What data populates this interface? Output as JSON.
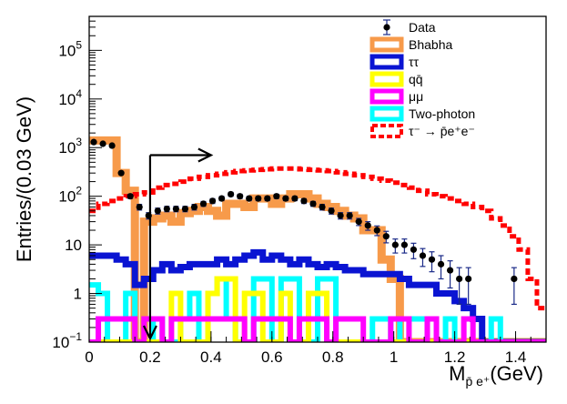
{
  "chart_data": {
    "type": "histogram",
    "title": "",
    "ylabel": "Entries/(0.03 GeV)",
    "xlabel": {
      "main": "M",
      "sub": "p̄ e⁺",
      "unit": "(GeV)"
    },
    "x_range": [
      0,
      1.5
    ],
    "y_scale": "log",
    "y_range": [
      0.1,
      500000
    ],
    "bin_width": 0.03,
    "x_ticks": [
      "0",
      "0.2",
      "0.4",
      "0.6",
      "0.8",
      "1",
      "1.2",
      "1.4"
    ],
    "x_tick_values": [
      0,
      0.2,
      0.4,
      0.6,
      0.8,
      1.0,
      1.2,
      1.4
    ],
    "y_ticks": [
      {
        "value": 0.1,
        "base": "10",
        "exp": "−1"
      },
      {
        "value": 1,
        "label": "1"
      },
      {
        "value": 10,
        "label": "10"
      },
      {
        "value": 100,
        "base": "10",
        "exp": "2"
      },
      {
        "value": 1000,
        "base": "10",
        "exp": "3"
      },
      {
        "value": 10000,
        "base": "10",
        "exp": "4"
      },
      {
        "value": 100000,
        "base": "10",
        "exp": "5"
      }
    ],
    "cut": {
      "x": 0.2,
      "label": "selection cut at 0.2 GeV, keep region to the right"
    },
    "legend": [
      {
        "label": "Data",
        "style": "marker",
        "color": "#000000"
      },
      {
        "label": "Bhabha",
        "style": "line",
        "color": "#f79a4a"
      },
      {
        "label": "ττ",
        "style": "line",
        "color": "#0a14d2"
      },
      {
        "label": "qq̄",
        "style": "line",
        "color": "#ffff00"
      },
      {
        "label": "μμ",
        "style": "line",
        "color": "#ff00ff"
      },
      {
        "label": "Two-photon",
        "style": "line",
        "color": "#00ffff"
      },
      {
        "label": "τ⁻ → p̄e⁺e⁻",
        "style": "dashed",
        "color": "#ff0000"
      }
    ],
    "series": [
      {
        "name": "Bhabha",
        "color": "#f79a4a",
        "width": 9,
        "dash": "",
        "values": [
          1400,
          1400,
          1400,
          300,
          130,
          0.1,
          30,
          35,
          40,
          30,
          45,
          50,
          60,
          50,
          40,
          70,
          70,
          60,
          90,
          90,
          70,
          90,
          110,
          110,
          90,
          70,
          60,
          50,
          40,
          35,
          20,
          20,
          5,
          2,
          0.1,
          0.1,
          0.1,
          0.1,
          0.1,
          0.1,
          0.1,
          0.1,
          0.1,
          0.1,
          0.1,
          0.1,
          0.1,
          0.1,
          0.1,
          0.1
        ]
      },
      {
        "name": "ττ",
        "color": "#0a14d2",
        "width": 7,
        "dash": "",
        "values": [
          6,
          6,
          6,
          5,
          4,
          1.5,
          2,
          3,
          4,
          3,
          3.5,
          4,
          4,
          4,
          5,
          4,
          5,
          6,
          7,
          5,
          6,
          5,
          4,
          5,
          4,
          3.5,
          4,
          3.5,
          3,
          3,
          2.5,
          2.5,
          2.5,
          2.5,
          2,
          1.5,
          1.5,
          1.5,
          1,
          1,
          0.7,
          0.5,
          0.3,
          0.1,
          0.1,
          0.1,
          0.1,
          0.1,
          0.1,
          0.1
        ]
      },
      {
        "name": "Two-photon",
        "color": "#00ffff",
        "width": 6,
        "dash": "",
        "values": [
          1.5,
          1,
          0.1,
          0.1,
          1,
          0.1,
          0.1,
          0.3,
          0.1,
          0.1,
          0.3,
          1,
          0.1,
          1,
          2,
          0.3,
          0.1,
          0.1,
          2,
          2,
          0.1,
          2,
          2,
          0.1,
          0.1,
          2,
          2,
          0.1,
          0.1,
          0.1,
          0.1,
          0.3,
          0.3,
          0.1,
          0.3,
          0.3,
          0.3,
          0.3,
          0.1,
          0.3,
          0.1,
          0.1,
          0.1,
          0.1,
          0.3,
          0.1,
          0.1,
          0.1,
          0.1,
          0.1
        ]
      },
      {
        "name": "qq̄",
        "color": "#ffff00",
        "width": 6,
        "dash": "",
        "values": [
          0.1,
          0.1,
          0.1,
          0.1,
          0.1,
          0.1,
          0.1,
          0.1,
          0.1,
          1,
          0.1,
          0.1,
          0.1,
          1,
          2,
          2,
          0.1,
          1,
          1,
          0.1,
          0.1,
          1,
          0.1,
          0.1,
          1,
          1,
          0.1,
          0.1,
          0.1,
          0.1,
          0.1,
          0.1,
          0.1,
          0.1,
          0.1,
          0.1,
          0.1,
          0.1,
          0.1,
          0.1,
          0.1,
          0.1,
          0.1,
          0.1,
          0.1,
          0.1,
          0.1,
          0.1,
          0.1,
          0.1
        ]
      },
      {
        "name": "μμ",
        "color": "#ff00ff",
        "width": 6,
        "dash": "",
        "values": [
          0.1,
          0.3,
          0.3,
          0.3,
          0.3,
          0.1,
          0.3,
          0.3,
          0.1,
          0.3,
          0.3,
          0.3,
          0.3,
          0.3,
          0.3,
          0.3,
          0.3,
          0.1,
          0.3,
          0.3,
          0.3,
          0.3,
          0.1,
          0.3,
          0.3,
          0.3,
          0.1,
          0.3,
          0.3,
          0.3,
          0.1,
          0.1,
          0.1,
          0.3,
          0.3,
          0.1,
          0.1,
          0.3,
          0.1,
          0.1,
          0.1,
          0.3,
          0.1,
          0.1,
          0.1,
          0.1,
          0.1,
          0.1,
          0.1,
          0.1
        ]
      },
      {
        "name": "τ⁻ → p̄e⁺e⁻",
        "color": "#ff0000",
        "width": 5,
        "dash": "7,4",
        "values": [
          50,
          70,
          80,
          90,
          100,
          110,
          120,
          150,
          170,
          180,
          200,
          230,
          250,
          270,
          290,
          310,
          330,
          340,
          350,
          360,
          370,
          370,
          370,
          360,
          350,
          340,
          330,
          310,
          290,
          270,
          250,
          230,
          210,
          190,
          170,
          150,
          130,
          110,
          100,
          90,
          80,
          70,
          60,
          50,
          35,
          25,
          15,
          8,
          2,
          0.5
        ]
      }
    ],
    "data_points": {
      "name": "Data",
      "color": "#000000",
      "x": [
        0.015,
        0.045,
        0.075,
        0.105,
        0.135,
        0.165,
        0.195,
        0.225,
        0.255,
        0.285,
        0.315,
        0.345,
        0.375,
        0.405,
        0.435,
        0.465,
        0.495,
        0.525,
        0.555,
        0.585,
        0.615,
        0.645,
        0.675,
        0.705,
        0.735,
        0.765,
        0.795,
        0.825,
        0.855,
        0.885,
        0.915,
        0.945,
        0.975,
        1.005,
        1.035,
        1.065,
        1.095,
        1.125,
        1.155,
        1.185,
        1.215,
        1.245,
        1.395
      ],
      "y": [
        1300,
        1200,
        1100,
        300,
        100,
        60,
        40,
        50,
        55,
        55,
        55,
        60,
        70,
        80,
        90,
        110,
        100,
        90,
        90,
        90,
        100,
        90,
        90,
        80,
        70,
        60,
        50,
        40,
        40,
        30,
        25,
        20,
        15,
        10,
        10,
        8,
        6,
        5,
        4,
        3,
        2,
        2,
        2
      ],
      "err": [
        40,
        35,
        35,
        17,
        10,
        8,
        6,
        7,
        7,
        7,
        7,
        8,
        8,
        9,
        9,
        10,
        10,
        9,
        9,
        9,
        10,
        9,
        9,
        9,
        8,
        8,
        7,
        6,
        6,
        5,
        5,
        4.5,
        4,
        3.2,
        3.2,
        2.8,
        2.4,
        2.2,
        2,
        1.7,
        1.4,
        1.4,
        1.4
      ]
    }
  }
}
